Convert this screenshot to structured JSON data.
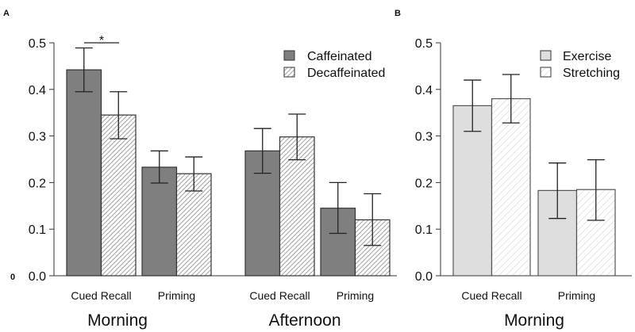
{
  "chart_data": [
    {
      "type": "bar",
      "panel_label": "A",
      "stray_label": "0",
      "groups": [
        "Morning",
        "Afternoon"
      ],
      "categories": [
        "Cued Recall",
        "Priming",
        "Cued Recall",
        "Priming"
      ],
      "series": [
        {
          "name": "Caffeinated",
          "style": "solid",
          "color": "#7f7f7f",
          "values": [
            0.442,
            0.233,
            0.268,
            0.145
          ],
          "err_low": [
            0.395,
            0.199,
            0.22,
            0.091
          ],
          "err_high": [
            0.489,
            0.268,
            0.316,
            0.2
          ]
        },
        {
          "name": "Decaffeinated",
          "style": "hatched",
          "color": "#cfcfcf",
          "values": [
            0.345,
            0.219,
            0.298,
            0.12
          ],
          "err_low": [
            0.294,
            0.182,
            0.249,
            0.065
          ],
          "err_high": [
            0.395,
            0.255,
            0.347,
            0.176
          ]
        }
      ],
      "yticks": [
        "0.0",
        "0.1",
        "0.2",
        "0.3",
        "0.4",
        "0.5"
      ],
      "ylim": [
        0,
        0.5
      ],
      "annotation": {
        "text": "*",
        "between": "Morning Cued Recall Caffeinated vs Decaffeinated"
      },
      "legend": "top-right"
    },
    {
      "type": "bar",
      "panel_label": "B",
      "groups": [
        "Morning"
      ],
      "categories": [
        "Cued Recall",
        "Priming"
      ],
      "series": [
        {
          "name": "Exercise",
          "style": "solid",
          "color": "#dedede",
          "values": [
            0.365,
            0.183
          ],
          "err_low": [
            0.31,
            0.123
          ],
          "err_high": [
            0.42,
            0.242
          ]
        },
        {
          "name": "Stretching",
          "style": "hatched",
          "color": "#e6e6e6",
          "values": [
            0.38,
            0.185
          ],
          "err_low": [
            0.328,
            0.119
          ],
          "err_high": [
            0.432,
            0.249
          ]
        }
      ],
      "yticks": [
        "0.0",
        "0.1",
        "0.2",
        "0.3",
        "0.4",
        "0.5"
      ],
      "ylim": [
        0,
        0.5
      ],
      "legend": "top-right"
    }
  ]
}
